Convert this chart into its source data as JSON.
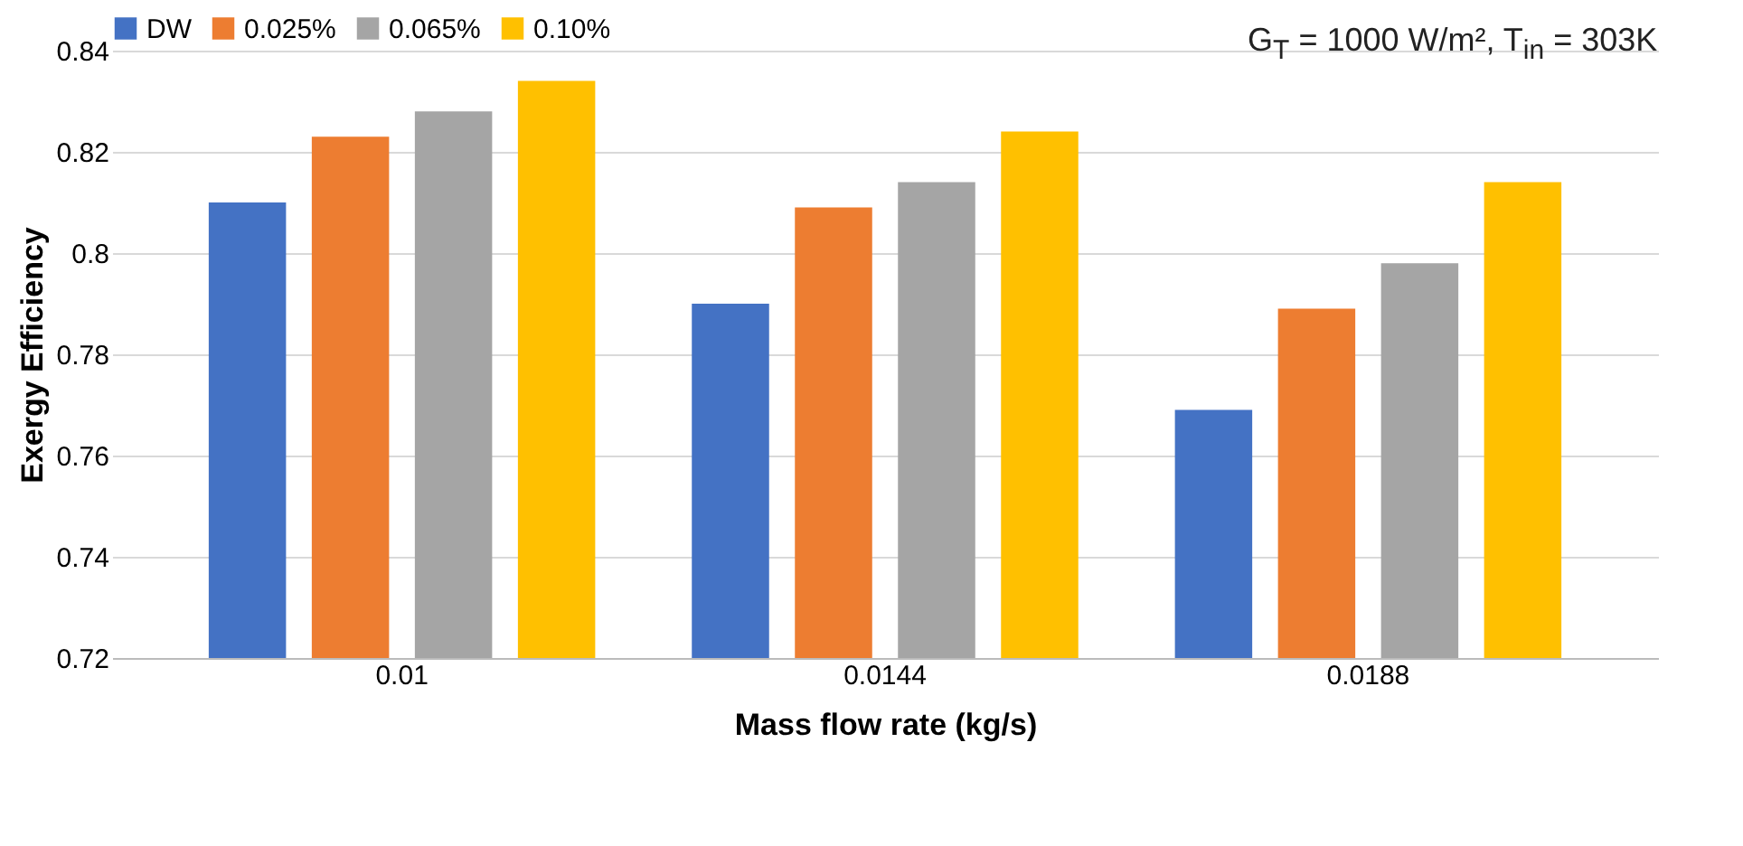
{
  "chart_data": {
    "type": "bar",
    "xlabel": "Mass flow rate (kg/s)",
    "ylabel": "Exergy Efficiency",
    "annotations": [
      "G$_{T}$ = 1000 W/m², T$_{in}$ = 303K"
    ],
    "categories": [
      "0.01",
      "0.0144",
      "0.0188"
    ],
    "series": [
      {
        "name": "DW",
        "color": "#4472c4",
        "values": [
          0.81,
          0.79,
          0.769
        ]
      },
      {
        "name": "0.025%",
        "color": "#ed7d31",
        "values": [
          0.823,
          0.809,
          0.789
        ]
      },
      {
        "name": "0.065%",
        "color": "#a5a5a5",
        "values": [
          0.828,
          0.814,
          0.798
        ]
      },
      {
        "name": "0.10%",
        "color": "#ffc000",
        "values": [
          0.834,
          0.824,
          0.814
        ]
      }
    ],
    "ylim": [
      0.72,
      0.84
    ],
    "yticks": [
      0.72,
      0.74,
      0.76,
      0.78,
      0.8,
      0.82,
      0.84
    ],
    "grid": "y",
    "legend": "top"
  }
}
